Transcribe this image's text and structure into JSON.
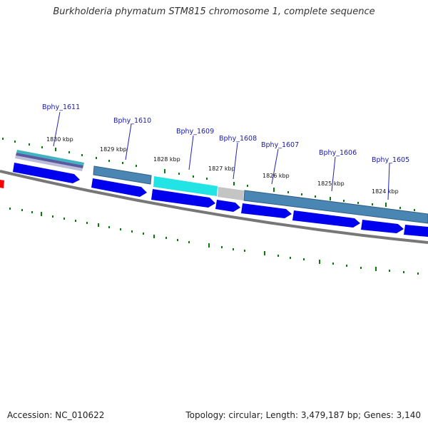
{
  "title": "Burkholderia phymatum STM815 chromosome 1, complete sequence",
  "accession": "Accession: NC_010622",
  "topology": "Topology: circular; Length: 3,479,187 bp; Genes: 3,140",
  "colors": {
    "cds_forward": "#0000ee",
    "cog_steelblue": "#4a86b4",
    "cog_cyan": "#22e4e4",
    "cog_gray": "#c0c0c0",
    "backbone": "#777777",
    "ticks": "#0a7a0a",
    "gene_label": "#1a1aa6",
    "marker": "#ff0000"
  },
  "map": {
    "kbp_labels": [
      "1830 kbp",
      "1829 kbp",
      "1828 kbp",
      "1827 kbp",
      "1826 kbp",
      "1825 kbp",
      "1824 kbp"
    ],
    "genes": [
      "Bphy_1611",
      "Bphy_1610",
      "Bphy_1609",
      "Bphy_1608",
      "Bphy_1607",
      "Bphy_1606",
      "Bphy_1605"
    ]
  }
}
